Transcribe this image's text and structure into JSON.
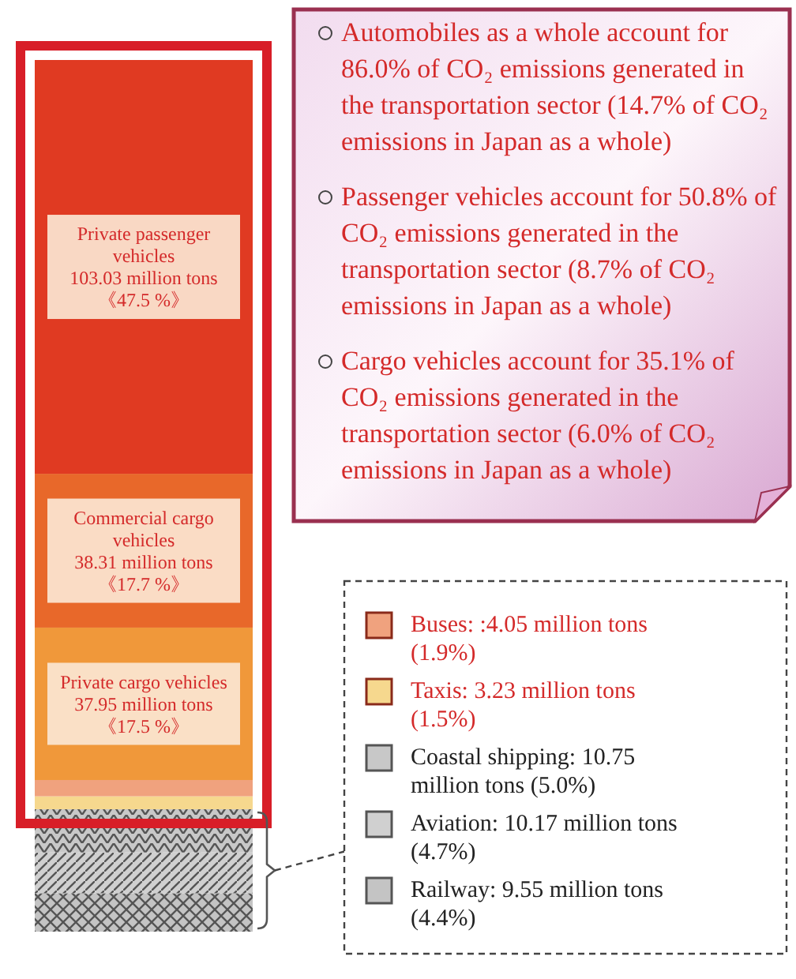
{
  "chart_data": {
    "type": "bar",
    "stacked": true,
    "categories": [
      null
    ],
    "legend": "right",
    "series": [
      {
        "name": "Railway:",
        "color": "#c4c4c4",
        "values": [
          9.55
        ],
        "value_labels": [
          "9.55 million tons"
        ]
      },
      {
        "name": "Aviation:",
        "color": "#d0d0d0",
        "values": [
          10.17
        ],
        "value_labels": [
          "10.17 million tons"
        ]
      },
      {
        "name": "Coastal shipping:",
        "color": "#c8c8c8",
        "values": [
          10.75
        ],
        "value_labels": [
          "10.75 million tons"
        ]
      },
      {
        "name": "Taxis:",
        "color": "#f6d88e",
        "values": [
          3.23
        ],
        "value_labels": [
          "3.23 million tons"
        ]
      },
      {
        "name": "Buses:",
        "color": "#f0a27e",
        "values": [
          4.05
        ],
        "value_labels": [
          ":4.05 million tons"
        ]
      },
      {
        "name": "Private cargo vehicles",
        "color": "#f0983a",
        "values": [
          37.95
        ],
        "value_labels": [
          "37.95 million tons"
        ]
      },
      {
        "name": "Commercial cargo vehicles",
        "color": "#e8682a",
        "values": [
          38.31
        ],
        "value_labels": [
          "38.31 million tons"
        ]
      },
      {
        "name": "Private passenger vehicles",
        "color": "#e03a22",
        "values": [
          103.03
        ],
        "value_labels": [
          "103.03 million tons"
        ]
      }
    ],
    "annotations": [
      "Automobiles as a whole account for 86.0% of CO₂ emissions generated in the transportation sector (14.7% of CO₂ emissions in Japan as a whole)",
      "Passenger vehicles account for 50.8% of CO₂ emissions generated in the transportation sector (8.7% of CO₂ emissions in Japan as a whole)",
      "Cargo vehicles account for 35.1% of CO₂ emissions generated in the transportation sector (6.0% of CO₂ emissions in Japan as a whole)",
      "(4.4%)",
      "(4.7%)",
      "(5.0%)",
      "(1.5%)",
      "(1.9%)",
      "《17.5 %》",
      "《17.7 %》",
      "《47.5 %》"
    ]
  }
}
